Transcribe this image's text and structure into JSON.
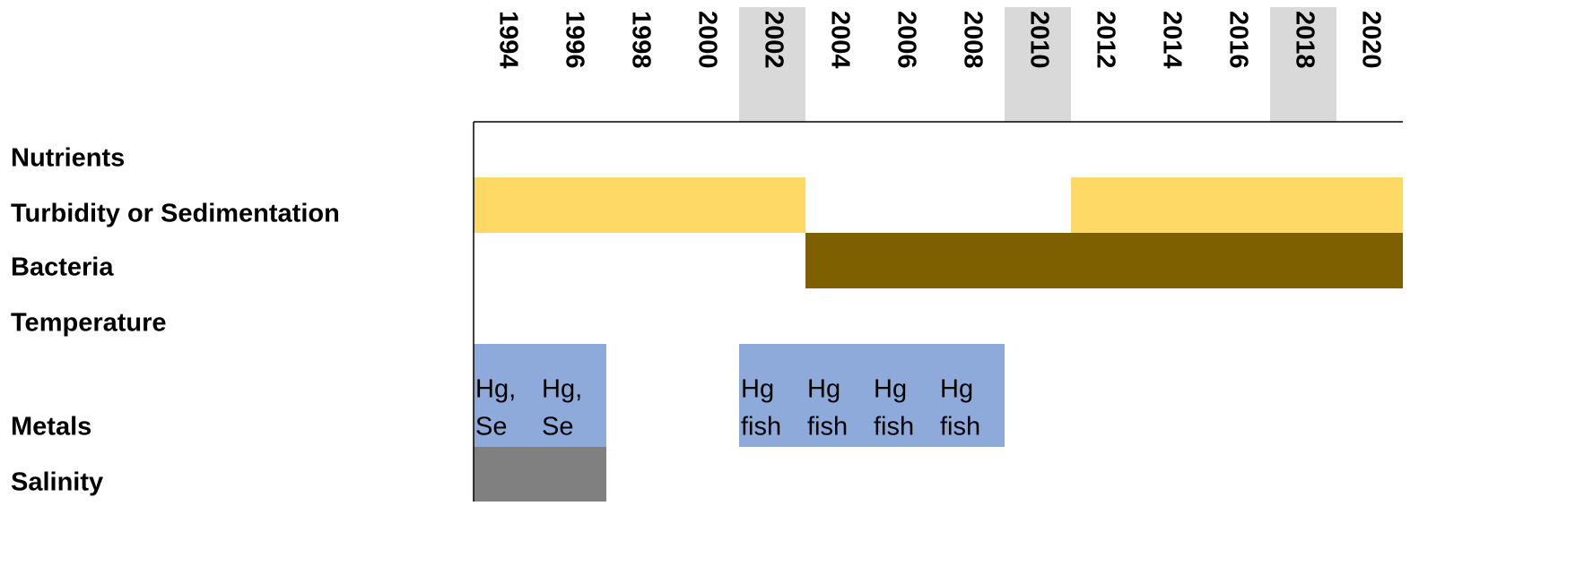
{
  "years": [
    1994,
    1996,
    1998,
    2000,
    2002,
    2004,
    2006,
    2008,
    2010,
    2012,
    2014,
    2016,
    2018,
    2020
  ],
  "highlighted_years": [
    2002,
    2010,
    2018
  ],
  "rows": [
    {
      "label": "Nutrients",
      "bars": []
    },
    {
      "label": "Turbidity or Sedimentation",
      "bars": [
        {
          "from": 1994,
          "to": 2002,
          "color": "#ffd966"
        },
        {
          "from": 2012,
          "to": 2020,
          "color": "#ffd966"
        }
      ]
    },
    {
      "label": "Bacteria",
      "bars": [
        {
          "from": 2004,
          "to": 2020,
          "color": "#7f6000"
        }
      ]
    },
    {
      "label": "Temperature",
      "bars": []
    },
    {
      "label": "Metals",
      "bars": [
        {
          "from": 1994,
          "to": 1996,
          "color": "#8eaadb"
        },
        {
          "from": 2002,
          "to": 2008,
          "color": "#8eaadb"
        }
      ],
      "cells": [
        {
          "year": 1994,
          "text": [
            "Hg,",
            "Se"
          ]
        },
        {
          "year": 1996,
          "text": [
            "Hg,",
            "Se"
          ]
        },
        {
          "year": 2002,
          "text": [
            "Hg",
            "fish"
          ]
        },
        {
          "year": 2004,
          "text": [
            "Hg",
            "fish"
          ]
        },
        {
          "year": 2006,
          "text": [
            "Hg",
            "fish"
          ]
        },
        {
          "year": 2008,
          "text": [
            "Hg",
            "fish"
          ]
        }
      ]
    },
    {
      "label": "Salinity",
      "bars": [
        {
          "from": 1994,
          "to": 1996,
          "color": "#808080"
        }
      ]
    }
  ]
}
